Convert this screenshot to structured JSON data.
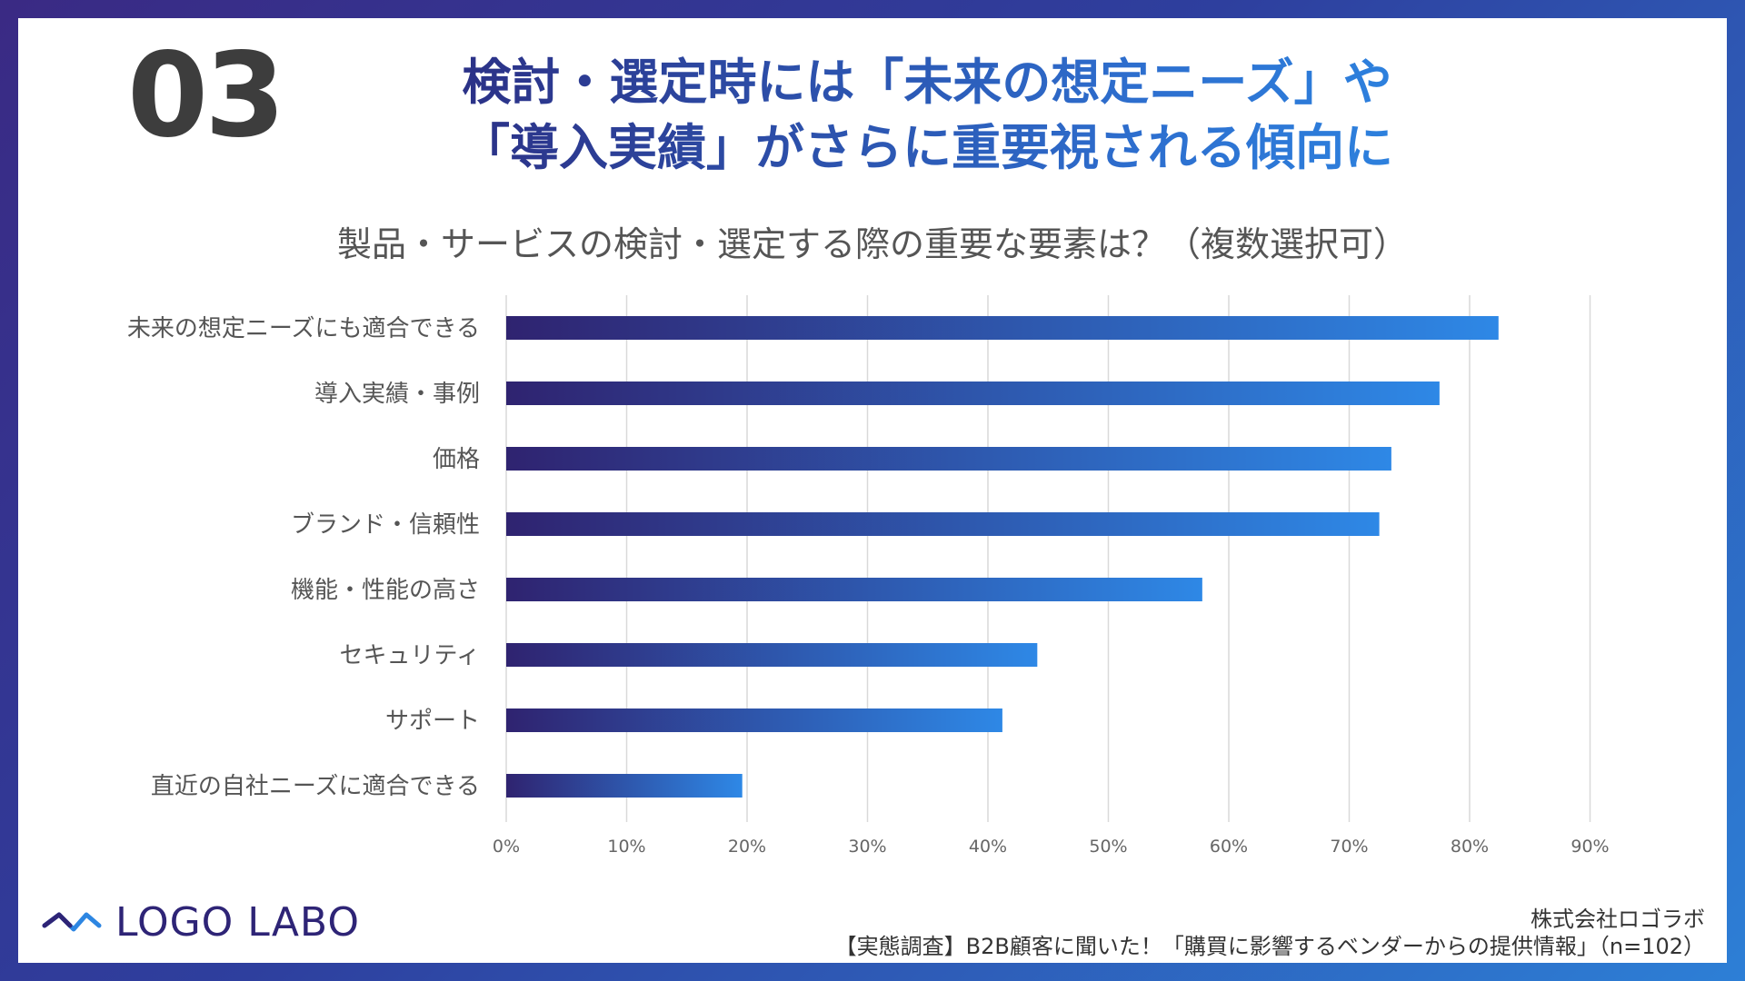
{
  "slide": {
    "number": "03",
    "headline_line1": "検討・選定時には「未来の想定ニーズ」や",
    "headline_line2": "「導入実績」がさらに重要視される傾向に"
  },
  "chart_data": {
    "type": "bar",
    "orientation": "horizontal",
    "title": "製品・サービスの検討・選定する際の重要な要素は？（複数選択可）",
    "categories": [
      "未来の想定ニーズにも適合できる",
      "導入実績・事例",
      "価格",
      "ブランド・信頼性",
      "機能・性能の高さ",
      "セキュリティ",
      "サポート",
      "直近の自社ニーズに適合できる"
    ],
    "values": [
      82.4,
      77.5,
      73.5,
      72.5,
      57.8,
      44.1,
      41.2,
      19.6
    ],
    "xlim": [
      0,
      90
    ],
    "xticks": [
      "0%",
      "10%",
      "20%",
      "30%",
      "40%",
      "50%",
      "60%",
      "70%",
      "80%",
      "90%"
    ],
    "grid": true,
    "colors": {
      "bar_start": "#2f2370",
      "bar_end": "#2e88e6"
    }
  },
  "footer": {
    "logo_text": "LOGO LABO",
    "company": "株式会社ロゴラボ",
    "source": "【実態調査】B2B顧客に聞いた！「購買に影響するベンダーからの提供情報」（n=102）"
  },
  "colors": {
    "frame_start": "#3a2a84",
    "frame_end": "#2d7fd6",
    "logo": "#2e2476"
  }
}
